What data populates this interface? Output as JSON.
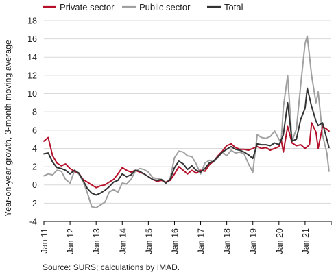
{
  "chart_data": {
    "type": "line",
    "title": "",
    "xlabel": "",
    "ylabel": "Year-on-year growth, 3-month moving average",
    "ylim": [
      -4,
      18
    ],
    "yticks": [
      -4,
      -2,
      0,
      2,
      4,
      6,
      8,
      10,
      12,
      14,
      16,
      18
    ],
    "xlim": [
      "2011-01",
      "2021-12"
    ],
    "xticks": [
      "Jan 11",
      "Jan 12",
      "Jan 13",
      "Jan 14",
      "Jan 15",
      "Jan 16",
      "Jan 17",
      "Jan 18",
      "Jan 19",
      "Jan 20",
      "Jan 21"
    ],
    "grid": "horizontal",
    "legend_position": "top",
    "source": "Source: SURS; calculations by IMAD.",
    "series": [
      {
        "name": "Private sector",
        "color": "#b5102a",
        "points": [
          [
            "2011-01",
            4.8
          ],
          [
            "2011-03",
            5.2
          ],
          [
            "2011-05",
            3.2
          ],
          [
            "2011-07",
            2.4
          ],
          [
            "2011-09",
            2.1
          ],
          [
            "2011-11",
            2.3
          ],
          [
            "2012-01",
            1.8
          ],
          [
            "2012-03",
            1.5
          ],
          [
            "2012-05",
            1.3
          ],
          [
            "2012-07",
            0.6
          ],
          [
            "2012-09",
            0.3
          ],
          [
            "2012-11",
            0.0
          ],
          [
            "2013-01",
            -0.3
          ],
          [
            "2013-03",
            -0.1
          ],
          [
            "2013-05",
            0.0
          ],
          [
            "2013-07",
            0.3
          ],
          [
            "2013-09",
            0.6
          ],
          [
            "2013-11",
            1.2
          ],
          [
            "2014-01",
            1.9
          ],
          [
            "2014-03",
            1.6
          ],
          [
            "2014-05",
            1.4
          ],
          [
            "2014-07",
            1.6
          ],
          [
            "2014-09",
            1.4
          ],
          [
            "2014-11",
            1.2
          ],
          [
            "2015-01",
            0.9
          ],
          [
            "2015-03",
            0.6
          ],
          [
            "2015-05",
            0.4
          ],
          [
            "2015-07",
            0.5
          ],
          [
            "2015-09",
            0.3
          ],
          [
            "2015-11",
            0.5
          ],
          [
            "2016-01",
            1.2
          ],
          [
            "2016-03",
            2.0
          ],
          [
            "2016-05",
            1.6
          ],
          [
            "2016-07",
            1.2
          ],
          [
            "2016-09",
            1.6
          ],
          [
            "2016-11",
            1.3
          ],
          [
            "2017-01",
            1.6
          ],
          [
            "2017-03",
            1.5
          ],
          [
            "2017-05",
            2.2
          ],
          [
            "2017-07",
            2.6
          ],
          [
            "2017-09",
            3.2
          ],
          [
            "2017-11",
            3.7
          ],
          [
            "2018-01",
            4.3
          ],
          [
            "2018-03",
            4.5
          ],
          [
            "2018-05",
            4.1
          ],
          [
            "2018-07",
            3.9
          ],
          [
            "2018-09",
            3.9
          ],
          [
            "2018-11",
            3.8
          ],
          [
            "2019-01",
            4.0
          ],
          [
            "2019-03",
            4.2
          ],
          [
            "2019-05",
            4.0
          ],
          [
            "2019-07",
            4.1
          ],
          [
            "2019-09",
            3.8
          ],
          [
            "2019-11",
            4.0
          ],
          [
            "2020-01",
            4.2
          ],
          [
            "2020-02",
            5.0
          ],
          [
            "2020-03",
            3.6
          ],
          [
            "2020-05",
            6.4
          ],
          [
            "2020-07",
            4.6
          ],
          [
            "2020-09",
            4.3
          ],
          [
            "2020-11",
            4.4
          ],
          [
            "2021-01",
            4.0
          ],
          [
            "2021-03",
            4.4
          ],
          [
            "2021-04",
            6.8
          ],
          [
            "2021-06",
            5.8
          ],
          [
            "2021-07",
            4.0
          ],
          [
            "2021-09",
            6.4
          ],
          [
            "2021-11",
            6.1
          ],
          [
            "2021-12",
            5.9
          ]
        ]
      },
      {
        "name": "Public sector",
        "color": "#a0a0a0",
        "points": [
          [
            "2011-01",
            1.0
          ],
          [
            "2011-03",
            1.2
          ],
          [
            "2011-05",
            1.1
          ],
          [
            "2011-07",
            1.6
          ],
          [
            "2011-09",
            1.5
          ],
          [
            "2011-11",
            0.6
          ],
          [
            "2012-01",
            0.2
          ],
          [
            "2012-03",
            1.5
          ],
          [
            "2012-05",
            1.2
          ],
          [
            "2012-07",
            0.4
          ],
          [
            "2012-09",
            -0.9
          ],
          [
            "2012-11",
            -2.4
          ],
          [
            "2013-01",
            -2.5
          ],
          [
            "2013-03",
            -2.2
          ],
          [
            "2013-05",
            -1.9
          ],
          [
            "2013-07",
            -0.8
          ],
          [
            "2013-09",
            -0.5
          ],
          [
            "2013-11",
            -0.8
          ],
          [
            "2014-01",
            0.2
          ],
          [
            "2014-03",
            0.1
          ],
          [
            "2014-05",
            0.6
          ],
          [
            "2014-07",
            1.5
          ],
          [
            "2014-09",
            1.8
          ],
          [
            "2014-11",
            1.7
          ],
          [
            "2015-01",
            1.4
          ],
          [
            "2015-03",
            0.8
          ],
          [
            "2015-05",
            0.7
          ],
          [
            "2015-07",
            0.6
          ],
          [
            "2015-09",
            0.2
          ],
          [
            "2015-11",
            0.7
          ],
          [
            "2016-01",
            3.0
          ],
          [
            "2016-03",
            3.7
          ],
          [
            "2016-05",
            3.6
          ],
          [
            "2016-07",
            3.2
          ],
          [
            "2016-09",
            3.1
          ],
          [
            "2016-11",
            2.3
          ],
          [
            "2017-01",
            1.2
          ],
          [
            "2017-03",
            2.4
          ],
          [
            "2017-05",
            2.7
          ],
          [
            "2017-07",
            2.5
          ],
          [
            "2017-09",
            3.0
          ],
          [
            "2017-11",
            3.6
          ],
          [
            "2018-01",
            3.2
          ],
          [
            "2018-03",
            3.8
          ],
          [
            "2018-05",
            3.5
          ],
          [
            "2018-07",
            3.6
          ],
          [
            "2018-09",
            3.4
          ],
          [
            "2018-11",
            2.3
          ],
          [
            "2019-01",
            1.4
          ],
          [
            "2019-03",
            5.5
          ],
          [
            "2019-05",
            5.2
          ],
          [
            "2019-07",
            5.1
          ],
          [
            "2019-09",
            5.3
          ],
          [
            "2019-11",
            5.9
          ],
          [
            "2020-01",
            5.0
          ],
          [
            "2020-02",
            4.6
          ],
          [
            "2020-03",
            8.5
          ],
          [
            "2020-05",
            12.0
          ],
          [
            "2020-07",
            4.8
          ],
          [
            "2020-09",
            6.1
          ],
          [
            "2020-11",
            11.0
          ],
          [
            "2021-01",
            15.5
          ],
          [
            "2021-02",
            16.3
          ],
          [
            "2021-04",
            12.0
          ],
          [
            "2021-06",
            9.0
          ],
          [
            "2021-07",
            10.2
          ],
          [
            "2021-09",
            5.5
          ],
          [
            "2021-11",
            3.5
          ],
          [
            "2021-12",
            1.5
          ]
        ]
      },
      {
        "name": "Total",
        "color": "#333333",
        "points": [
          [
            "2011-01",
            3.4
          ],
          [
            "2011-03",
            3.5
          ],
          [
            "2011-05",
            2.5
          ],
          [
            "2011-07",
            1.9
          ],
          [
            "2011-09",
            1.8
          ],
          [
            "2011-11",
            1.6
          ],
          [
            "2012-01",
            1.2
          ],
          [
            "2012-03",
            1.6
          ],
          [
            "2012-05",
            1.3
          ],
          [
            "2012-07",
            0.5
          ],
          [
            "2012-09",
            -0.4
          ],
          [
            "2012-11",
            -0.9
          ],
          [
            "2013-01",
            -1.1
          ],
          [
            "2013-03",
            -0.9
          ],
          [
            "2013-05",
            -0.6
          ],
          [
            "2013-07",
            -0.2
          ],
          [
            "2013-09",
            0.3
          ],
          [
            "2013-11",
            0.5
          ],
          [
            "2014-01",
            1.2
          ],
          [
            "2014-03",
            0.9
          ],
          [
            "2014-05",
            1.1
          ],
          [
            "2014-07",
            1.6
          ],
          [
            "2014-09",
            1.5
          ],
          [
            "2014-11",
            1.2
          ],
          [
            "2015-01",
            0.9
          ],
          [
            "2015-03",
            0.6
          ],
          [
            "2015-05",
            0.5
          ],
          [
            "2015-07",
            0.6
          ],
          [
            "2015-09",
            0.2
          ],
          [
            "2015-11",
            0.6
          ],
          [
            "2016-01",
            1.9
          ],
          [
            "2016-03",
            2.6
          ],
          [
            "2016-05",
            2.3
          ],
          [
            "2016-07",
            1.7
          ],
          [
            "2016-09",
            2.1
          ],
          [
            "2016-11",
            1.6
          ],
          [
            "2017-01",
            1.4
          ],
          [
            "2017-03",
            1.8
          ],
          [
            "2017-05",
            2.4
          ],
          [
            "2017-07",
            2.6
          ],
          [
            "2017-09",
            3.1
          ],
          [
            "2017-11",
            3.6
          ],
          [
            "2018-01",
            3.9
          ],
          [
            "2018-03",
            4.2
          ],
          [
            "2018-05",
            3.9
          ],
          [
            "2018-07",
            3.8
          ],
          [
            "2018-09",
            3.6
          ],
          [
            "2018-11",
            3.3
          ],
          [
            "2019-01",
            2.9
          ],
          [
            "2019-03",
            4.5
          ],
          [
            "2019-05",
            4.4
          ],
          [
            "2019-07",
            4.4
          ],
          [
            "2019-09",
            4.3
          ],
          [
            "2019-11",
            4.6
          ],
          [
            "2020-01",
            4.4
          ],
          [
            "2020-02",
            4.9
          ],
          [
            "2020-03",
            5.5
          ],
          [
            "2020-05",
            9.0
          ],
          [
            "2020-07",
            4.8
          ],
          [
            "2020-09",
            5.0
          ],
          [
            "2020-11",
            7.2
          ],
          [
            "2021-01",
            8.4
          ],
          [
            "2021-02",
            10.6
          ],
          [
            "2021-04",
            8.6
          ],
          [
            "2021-06",
            7.0
          ],
          [
            "2021-07",
            6.5
          ],
          [
            "2021-09",
            6.8
          ],
          [
            "2021-11",
            5.0
          ],
          [
            "2021-12",
            4.1
          ]
        ]
      }
    ]
  }
}
